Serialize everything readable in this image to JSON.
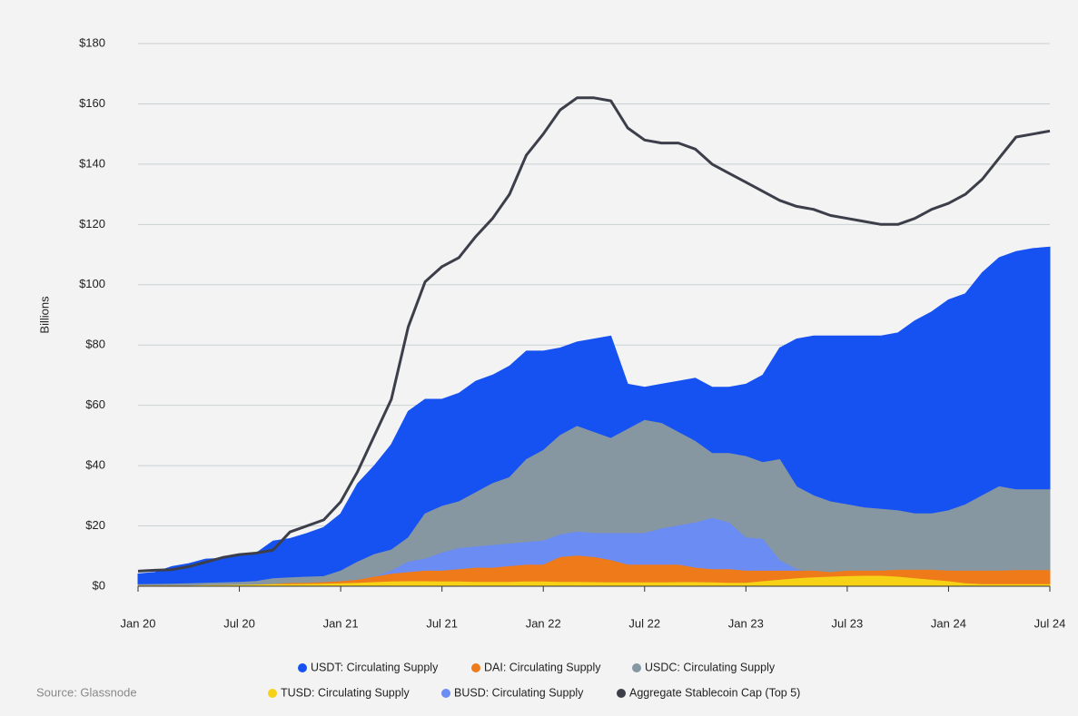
{
  "chart_data": {
    "type": "area",
    "y_label": "Billions",
    "source": "Source: Glassnode",
    "x": [
      0,
      1,
      2,
      3,
      4,
      5,
      6,
      7,
      8,
      9,
      10,
      11,
      12,
      13,
      14,
      15,
      16,
      17,
      18,
      19,
      20,
      21,
      22,
      23,
      24,
      25,
      26,
      27,
      28,
      29,
      30,
      31,
      32,
      33,
      34,
      35,
      36,
      37,
      38,
      39,
      40,
      41,
      42,
      43,
      44,
      45,
      46,
      47,
      48,
      49,
      50,
      51,
      52,
      53,
      54
    ],
    "xlim": [
      0,
      54
    ],
    "xticks": [
      {
        "value": 0,
        "label": "Jan 20"
      },
      {
        "value": 6,
        "label": "Jul 20"
      },
      {
        "value": 12,
        "label": "Jan 21"
      },
      {
        "value": 18,
        "label": "Jul 21"
      },
      {
        "value": 24,
        "label": "Jan 22"
      },
      {
        "value": 30,
        "label": "Jul 22"
      },
      {
        "value": 36,
        "label": "Jan 23"
      },
      {
        "value": 42,
        "label": "Jul 23"
      },
      {
        "value": 48,
        "label": "Jan 24"
      },
      {
        "value": 54,
        "label": "Jul 24"
      }
    ],
    "ylim": [
      0,
      180
    ],
    "yticks": [
      {
        "value": 0,
        "label": "$0"
      },
      {
        "value": 20,
        "label": "$20"
      },
      {
        "value": 40,
        "label": "$40"
      },
      {
        "value": 60,
        "label": "$60"
      },
      {
        "value": 80,
        "label": "$80"
      },
      {
        "value": 100,
        "label": "$100"
      },
      {
        "value": 120,
        "label": "$120"
      },
      {
        "value": 140,
        "label": "$140"
      },
      {
        "value": 160,
        "label": "$160"
      },
      {
        "value": 180,
        "label": "$180"
      }
    ],
    "grid": true,
    "series": [
      {
        "name": "USDT: Circulating Supply",
        "color": "#1652f2",
        "type": "area",
        "values": [
          4.1,
          4.6,
          6.5,
          7.5,
          9,
          9.2,
          10,
          11,
          15,
          15.8,
          17.5,
          19.5,
          24,
          34,
          40,
          47,
          58,
          62,
          62,
          64,
          68,
          70,
          73,
          78,
          78,
          79,
          81,
          82,
          83,
          67,
          66,
          67,
          68,
          69,
          66,
          66,
          67,
          70,
          79,
          82,
          83,
          83,
          83,
          83,
          83,
          84,
          88,
          91,
          95,
          97,
          104,
          109,
          111,
          112,
          112.5
        ]
      },
      {
        "name": "DAI: Circulating Supply",
        "color": "#ef7a1a",
        "type": "area",
        "values": [
          0.1,
          0.1,
          0.1,
          0.1,
          0.1,
          0.2,
          0.2,
          0.4,
          0.6,
          0.9,
          1,
          1.2,
          1.5,
          2,
          3,
          4,
          4.5,
          5,
          5,
          5.5,
          6,
          6,
          6.5,
          7,
          7,
          9.5,
          10,
          9.5,
          8.5,
          7,
          7,
          7,
          7,
          6,
          5.5,
          5.5,
          5,
          5,
          5,
          5,
          5,
          4.5,
          5,
          5,
          5,
          5.3,
          5.3,
          5.3,
          5,
          5,
          5,
          5,
          5.2,
          5.2,
          5.2
        ]
      },
      {
        "name": "USDC: Circulating Supply",
        "color": "#8797a2",
        "type": "area",
        "values": [
          0.5,
          0.6,
          0.7,
          0.8,
          1,
          1.1,
          1.3,
          1.6,
          2.5,
          2.8,
          3,
          3.2,
          5,
          8,
          10.5,
          12,
          16,
          24,
          26.5,
          28,
          31,
          34,
          36,
          42,
          45,
          50,
          53,
          51,
          49,
          52,
          55,
          54,
          51,
          48,
          44,
          44,
          43,
          41,
          42,
          33,
          30,
          28,
          27,
          26,
          25.5,
          25,
          24,
          24,
          25,
          27,
          30,
          33,
          32,
          32,
          32
        ]
      },
      {
        "name": "TUSD: Circulating Supply",
        "color": "#f6d116",
        "type": "area",
        "values": [
          0.1,
          0.1,
          0.1,
          0.1,
          0.2,
          0.2,
          0.3,
          0.4,
          0.5,
          0.5,
          0.6,
          0.7,
          0.8,
          1,
          1.2,
          1.4,
          1.5,
          1.5,
          1.4,
          1.4,
          1.3,
          1.3,
          1.3,
          1.4,
          1.4,
          1.3,
          1.3,
          1.2,
          1.1,
          1.1,
          1.1,
          1.1,
          1.2,
          1.2,
          1.1,
          1,
          1,
          1.5,
          2,
          2.5,
          2.8,
          3,
          3.2,
          3.3,
          3.3,
          3,
          2.5,
          2,
          1.5,
          0.8,
          0.5,
          0.5,
          0.5,
          0.5,
          0.5
        ]
      },
      {
        "name": "BUSD: Circulating Supply",
        "color": "#6b8cf2",
        "type": "area",
        "values": [
          0.1,
          0.1,
          0.1,
          0.2,
          0.2,
          0.2,
          0.2,
          0.3,
          0.4,
          0.4,
          0.5,
          0.6,
          1,
          2,
          3,
          5,
          8,
          9,
          11,
          12.5,
          13,
          13.5,
          14,
          14.5,
          15,
          17,
          18,
          17.5,
          17.5,
          17.5,
          17.5,
          19,
          20,
          21,
          22.5,
          21,
          16,
          15.5,
          8.5,
          5.5,
          4.5,
          4,
          3.5,
          3,
          2.5,
          2,
          1.5,
          1.2,
          1,
          0.8,
          0.6,
          0.4,
          0.2,
          0.1,
          0.1
        ]
      },
      {
        "name": "Aggregate Stablecoin Cap (Top 5)",
        "color": "#3c3f4a",
        "type": "line",
        "values": [
          5,
          5.3,
          5.5,
          6.5,
          8,
          9.5,
          10.5,
          11,
          12,
          18,
          20,
          22,
          28,
          38,
          50,
          62,
          86,
          101,
          106,
          109,
          116,
          122,
          130,
          143,
          150,
          158,
          162,
          162,
          161,
          152,
          148,
          147,
          147,
          145,
          140,
          137,
          134,
          131,
          128,
          126,
          125,
          123,
          122,
          121,
          120,
          120,
          122,
          125,
          127,
          130,
          135,
          142,
          149,
          150,
          151
        ]
      }
    ]
  }
}
